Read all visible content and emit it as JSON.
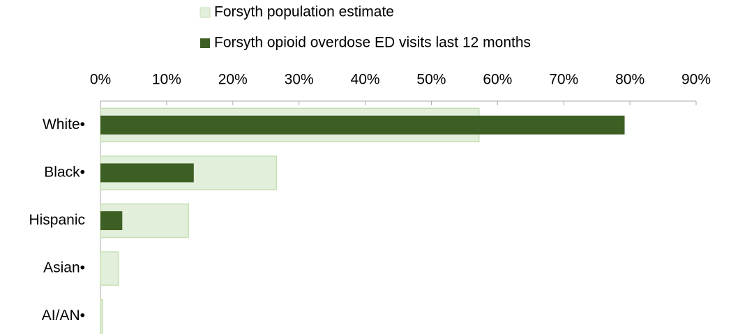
{
  "chart_data": {
    "type": "bar",
    "orientation": "horizontal",
    "overlap": true,
    "categories": [
      "White•",
      "Black•",
      "Hispanic",
      "Asian•",
      "AI/AN•"
    ],
    "series": [
      {
        "name": "Forsyth population estimate",
        "color": "#e2efda",
        "values": [
          57.2,
          26.6,
          13.3,
          2.7,
          0.3
        ]
      },
      {
        "name": "Forsyth opioid overdose ED visits last 12 months",
        "color": "#3d5f24",
        "values": [
          79.2,
          14.1,
          3.3,
          0,
          0
        ]
      }
    ],
    "xlim": [
      0,
      90
    ],
    "xticks": [
      {
        "value": 0,
        "label": "0%"
      },
      {
        "value": 10,
        "label": "10%"
      },
      {
        "value": 20,
        "label": "20%"
      },
      {
        "value": 30,
        "label": "30%"
      },
      {
        "value": 40,
        "label": "40%"
      },
      {
        "value": 50,
        "label": "50%"
      },
      {
        "value": 60,
        "label": "60%"
      },
      {
        "value": 70,
        "label": "70%"
      },
      {
        "value": 80,
        "label": "80%"
      },
      {
        "value": 90,
        "label": "90%"
      }
    ],
    "legend": "top"
  }
}
